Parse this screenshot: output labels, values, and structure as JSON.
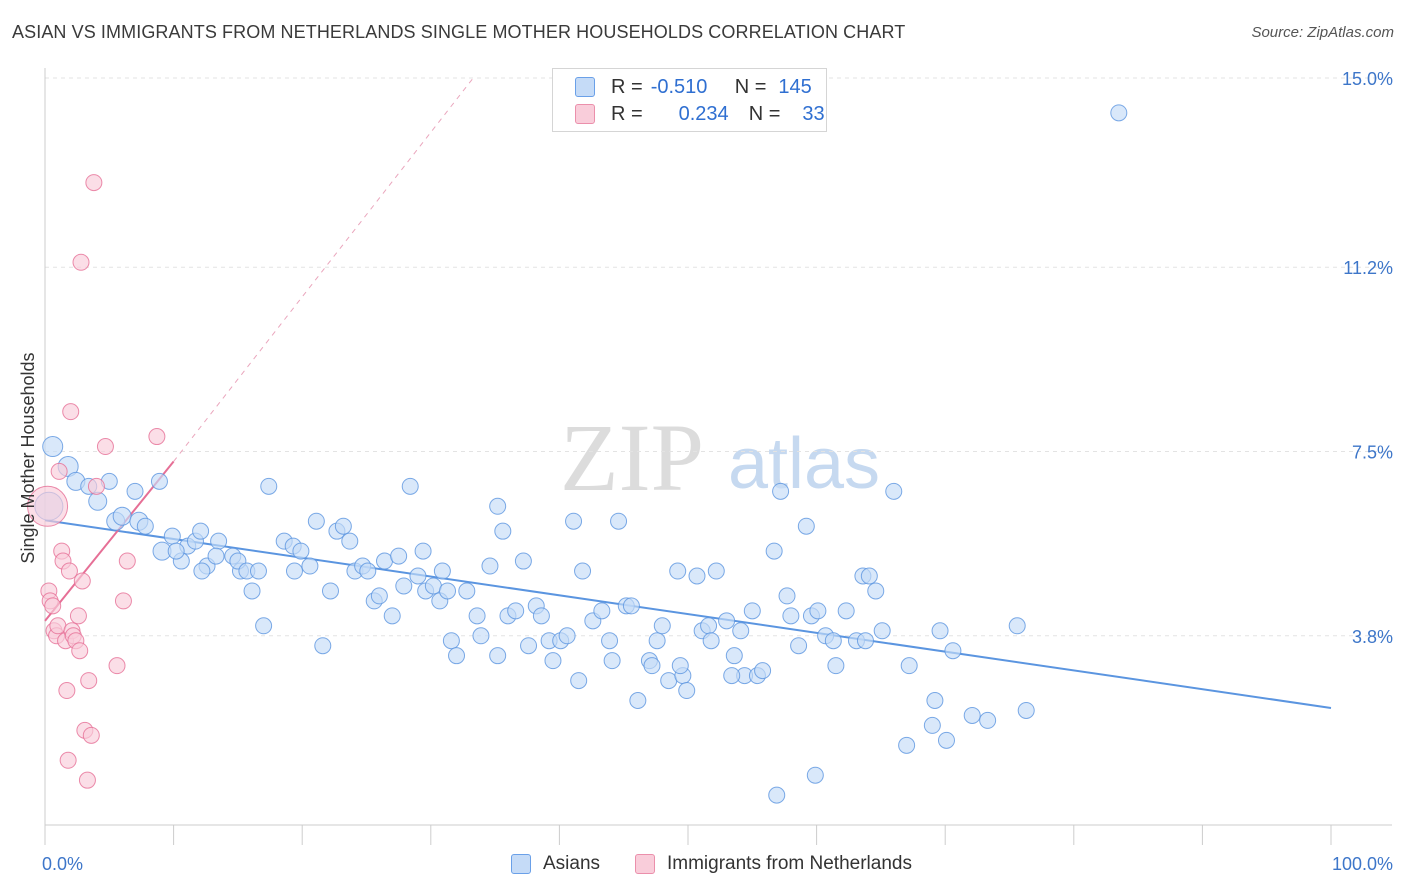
{
  "title": "ASIAN VS IMMIGRANTS FROM NETHERLANDS SINGLE MOTHER HOUSEHOLDS CORRELATION CHART",
  "source": "Source: ZipAtlas.com",
  "watermark": {
    "zip": "ZIP",
    "atlas": "atlas"
  },
  "legend": {
    "r_label": "R =",
    "n_label": "N =",
    "series": [
      {
        "r": "-0.510",
        "n": "145",
        "color": "#6aa0e8",
        "fill": "#c5dbf7"
      },
      {
        "r": "0.234",
        "n": "33",
        "color": "#eb8fab",
        "fill": "#f9cdda"
      }
    ]
  },
  "bottom_legend": [
    "Asians",
    "Immigrants from Netherlands"
  ],
  "chart_data": {
    "type": "scatter",
    "ylabel": "Single Mother Households",
    "xlim": [
      0,
      100
    ],
    "ylim": [
      0,
      15
    ],
    "x_tick_labels": [
      "0.0%",
      "100.0%"
    ],
    "y_ticks": [
      {
        "value": 3.8,
        "label": "3.8%"
      },
      {
        "value": 7.5,
        "label": "7.5%"
      },
      {
        "value": 11.2,
        "label": "11.2%"
      },
      {
        "value": 15.0,
        "label": "15.0%"
      }
    ],
    "grid": true,
    "series": [
      {
        "name": "Asians",
        "color": "#5b95e0",
        "fill": "#c5dbf7",
        "trend": {
          "x1": 0,
          "y1": 6.12,
          "x2": 100,
          "y2": 2.35
        },
        "points": [
          [
            0.3,
            6.4,
            14
          ],
          [
            0.6,
            7.6,
            10
          ],
          [
            1.8,
            7.2,
            10
          ],
          [
            2.4,
            6.9,
            9
          ],
          [
            3.4,
            6.8,
            8
          ],
          [
            4.1,
            6.5,
            9
          ],
          [
            5.0,
            6.9,
            8
          ],
          [
            5.5,
            6.1,
            9
          ],
          [
            6.0,
            6.2,
            9
          ],
          [
            7.3,
            6.1,
            9
          ],
          [
            7.0,
            6.7,
            8
          ],
          [
            7.8,
            6.0,
            8
          ],
          [
            9.1,
            5.5,
            9
          ],
          [
            8.9,
            6.9,
            8
          ],
          [
            9.9,
            5.8,
            8
          ],
          [
            11.1,
            5.6,
            8
          ],
          [
            11.7,
            5.7,
            8
          ],
          [
            10.6,
            5.3,
            8
          ],
          [
            10.2,
            5.5,
            8
          ],
          [
            12.1,
            5.9,
            8
          ],
          [
            12.6,
            5.2,
            8
          ],
          [
            13.5,
            5.7,
            8
          ],
          [
            12.2,
            5.1,
            8
          ],
          [
            14.6,
            5.4,
            8
          ],
          [
            13.3,
            5.4,
            8
          ],
          [
            15.2,
            5.1,
            8
          ],
          [
            15.0,
            5.3,
            8
          ],
          [
            15.7,
            5.1,
            8
          ],
          [
            16.1,
            4.7,
            8
          ],
          [
            17.4,
            6.8,
            8
          ],
          [
            16.6,
            5.1,
            8
          ],
          [
            17.0,
            4.0,
            8
          ],
          [
            18.6,
            5.7,
            8
          ],
          [
            19.4,
            5.1,
            8
          ],
          [
            19.3,
            5.6,
            8
          ],
          [
            19.9,
            5.5,
            8
          ],
          [
            20.6,
            5.2,
            8
          ],
          [
            21.1,
            6.1,
            8
          ],
          [
            21.6,
            3.6,
            8
          ],
          [
            22.2,
            4.7,
            8
          ],
          [
            22.7,
            5.9,
            8
          ],
          [
            23.2,
            6.0,
            8
          ],
          [
            23.7,
            5.7,
            8
          ],
          [
            24.1,
            5.1,
            8
          ],
          [
            24.7,
            5.2,
            8
          ],
          [
            25.1,
            5.1,
            8
          ],
          [
            25.6,
            4.5,
            8
          ],
          [
            26.0,
            4.6,
            8
          ],
          [
            26.4,
            5.3,
            8
          ],
          [
            27.0,
            4.2,
            8
          ],
          [
            27.5,
            5.4,
            8
          ],
          [
            27.9,
            4.8,
            8
          ],
          [
            28.4,
            6.8,
            8
          ],
          [
            29.0,
            5.0,
            8
          ],
          [
            29.6,
            4.7,
            8
          ],
          [
            29.4,
            5.5,
            8
          ],
          [
            30.2,
            4.8,
            8
          ],
          [
            30.9,
            5.1,
            8
          ],
          [
            30.7,
            4.5,
            8
          ],
          [
            31.3,
            4.7,
            8
          ],
          [
            31.6,
            3.7,
            8
          ],
          [
            32.0,
            3.4,
            8
          ],
          [
            32.8,
            4.7,
            8
          ],
          [
            33.6,
            4.2,
            8
          ],
          [
            33.9,
            3.8,
            8
          ],
          [
            34.6,
            5.2,
            8
          ],
          [
            35.2,
            3.4,
            8
          ],
          [
            35.2,
            6.4,
            8
          ],
          [
            35.6,
            5.9,
            8
          ],
          [
            36.0,
            4.2,
            8
          ],
          [
            36.6,
            4.3,
            8
          ],
          [
            37.2,
            5.3,
            8
          ],
          [
            37.6,
            3.6,
            8
          ],
          [
            38.2,
            4.4,
            8
          ],
          [
            38.6,
            4.2,
            8
          ],
          [
            39.2,
            3.7,
            8
          ],
          [
            39.5,
            3.3,
            8
          ],
          [
            40.1,
            3.7,
            8
          ],
          [
            40.6,
            3.8,
            8
          ],
          [
            41.1,
            6.1,
            8
          ],
          [
            41.5,
            2.9,
            8
          ],
          [
            41.8,
            5.1,
            8
          ],
          [
            42.6,
            4.1,
            8
          ],
          [
            43.3,
            4.3,
            8
          ],
          [
            43.9,
            3.7,
            8
          ],
          [
            44.1,
            3.3,
            8
          ],
          [
            44.6,
            6.1,
            8
          ],
          [
            45.2,
            4.4,
            8
          ],
          [
            45.6,
            4.4,
            8
          ],
          [
            46.1,
            2.5,
            8
          ],
          [
            47.0,
            3.3,
            8
          ],
          [
            47.2,
            3.2,
            8
          ],
          [
            47.6,
            3.7,
            8
          ],
          [
            48.0,
            4.0,
            8
          ],
          [
            48.5,
            2.9,
            8
          ],
          [
            49.2,
            5.1,
            8
          ],
          [
            49.6,
            3.0,
            8
          ],
          [
            49.9,
            2.7,
            8
          ],
          [
            50.7,
            5.0,
            8
          ],
          [
            51.1,
            3.9,
            8
          ],
          [
            51.6,
            4.0,
            8
          ],
          [
            51.8,
            3.7,
            8
          ],
          [
            52.2,
            5.1,
            8
          ],
          [
            53.0,
            4.1,
            8
          ],
          [
            53.6,
            3.4,
            8
          ],
          [
            54.1,
            3.9,
            8
          ],
          [
            54.4,
            3.0,
            8
          ],
          [
            55.0,
            4.3,
            8
          ],
          [
            55.4,
            3.0,
            8
          ],
          [
            55.8,
            3.1,
            8
          ],
          [
            56.7,
            5.5,
            8
          ],
          [
            57.2,
            6.7,
            8
          ],
          [
            57.7,
            4.6,
            8
          ],
          [
            58.0,
            4.2,
            8
          ],
          [
            58.6,
            3.6,
            8
          ],
          [
            59.2,
            6.0,
            8
          ],
          [
            59.6,
            4.2,
            8
          ],
          [
            60.1,
            4.3,
            8
          ],
          [
            60.7,
            3.8,
            8
          ],
          [
            61.3,
            3.7,
            8
          ],
          [
            61.5,
            3.2,
            8
          ],
          [
            62.3,
            4.3,
            8
          ],
          [
            63.1,
            3.7,
            8
          ],
          [
            63.6,
            5.0,
            8
          ],
          [
            64.1,
            5.0,
            8
          ],
          [
            64.6,
            4.7,
            8
          ],
          [
            63.8,
            3.7,
            8
          ],
          [
            65.1,
            3.9,
            8
          ],
          [
            66.0,
            6.7,
            8
          ],
          [
            67.2,
            3.2,
            8
          ],
          [
            69.2,
            2.5,
            8
          ],
          [
            69.6,
            3.9,
            8
          ],
          [
            70.1,
            1.7,
            8
          ],
          [
            69.0,
            2.0,
            8
          ],
          [
            70.6,
            3.5,
            8
          ],
          [
            72.1,
            2.2,
            8
          ],
          [
            73.3,
            2.1,
            8
          ],
          [
            75.6,
            4.0,
            8
          ],
          [
            76.3,
            2.3,
            8
          ],
          [
            83.5,
            14.3,
            8
          ],
          [
            59.9,
            1.0,
            8
          ],
          [
            67.0,
            1.6,
            8
          ],
          [
            56.9,
            0.6,
            8
          ],
          [
            53.4,
            3.0,
            8
          ],
          [
            49.4,
            3.2,
            8
          ]
        ]
      },
      {
        "name": "Immigrants from Netherlands",
        "color": "#e66f96",
        "fill": "#f9cdda",
        "trend": {
          "x1": 0,
          "y1": 4.1,
          "x2": 10,
          "y2": 7.3
        },
        "trend_ext": {
          "x1": 10,
          "y1": 7.3,
          "x2": 33.3,
          "y2": 15.0
        },
        "points": [
          [
            0.2,
            6.4,
            20
          ],
          [
            0.3,
            4.7,
            8
          ],
          [
            0.4,
            4.5,
            8
          ],
          [
            0.6,
            4.4,
            8
          ],
          [
            0.7,
            3.9,
            8
          ],
          [
            0.9,
            3.8,
            8
          ],
          [
            1.0,
            4.0,
            8
          ],
          [
            1.1,
            7.1,
            8
          ],
          [
            1.3,
            5.5,
            8
          ],
          [
            1.4,
            5.3,
            8
          ],
          [
            1.6,
            3.7,
            8
          ],
          [
            1.7,
            2.7,
            8
          ],
          [
            1.9,
            5.1,
            8
          ],
          [
            2.1,
            3.9,
            8
          ],
          [
            2.2,
            3.8,
            8
          ],
          [
            2.4,
            3.7,
            8
          ],
          [
            2.6,
            4.2,
            8
          ],
          [
            2.7,
            3.5,
            8
          ],
          [
            2.9,
            4.9,
            8
          ],
          [
            3.1,
            1.9,
            8
          ],
          [
            3.3,
            0.9,
            8
          ],
          [
            3.4,
            2.9,
            8
          ],
          [
            3.6,
            1.8,
            8
          ],
          [
            4.0,
            6.8,
            8
          ],
          [
            4.7,
            7.6,
            8
          ],
          [
            5.6,
            3.2,
            8
          ],
          [
            6.1,
            4.5,
            8
          ],
          [
            6.4,
            5.3,
            8
          ],
          [
            8.7,
            7.8,
            8
          ],
          [
            2.0,
            8.3,
            8
          ],
          [
            2.8,
            11.3,
            8
          ],
          [
            3.8,
            12.9,
            8
          ],
          [
            1.8,
            1.3,
            8
          ]
        ]
      }
    ]
  }
}
